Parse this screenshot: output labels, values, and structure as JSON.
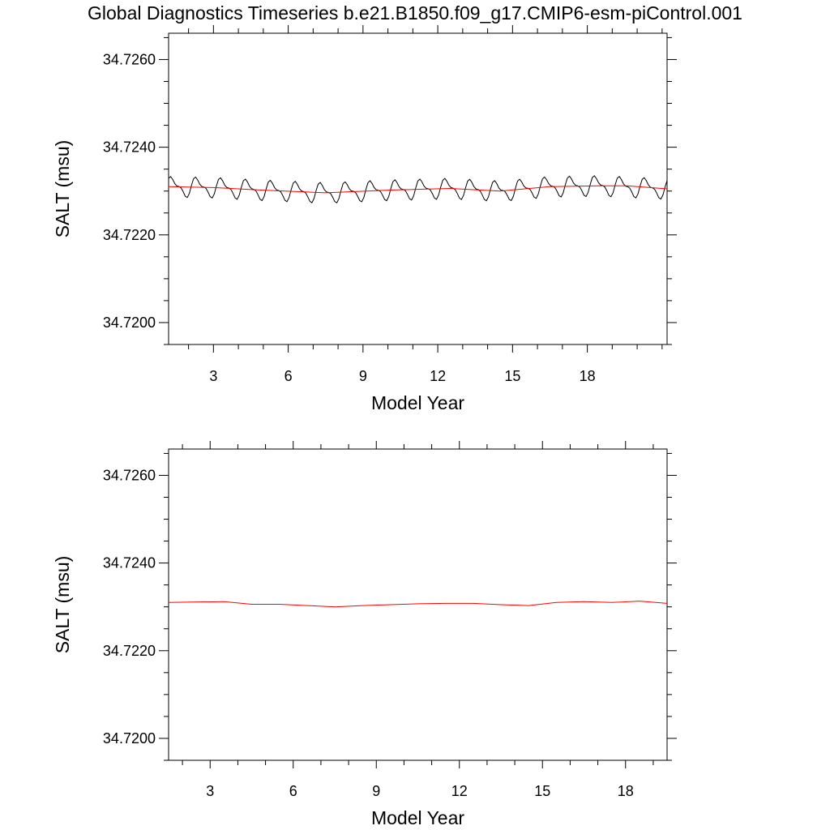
{
  "figure": {
    "title": "Global Diagnostics Timeseries b.e21.B1850.f09_g17.CMIP6-esm-piControl.001"
  },
  "chart_data": [
    {
      "type": "line",
      "title": "",
      "xlabel": "Model Year",
      "ylabel": "SALT (msu)",
      "xlim": [
        1.2,
        21.2
      ],
      "ylim": [
        34.7195,
        34.7266
      ],
      "x_ticks": [
        3,
        6,
        9,
        12,
        15,
        18
      ],
      "y_ticks": [
        34.72,
        34.722,
        34.724,
        34.726
      ],
      "y_tick_labels": [
        "34.7200",
        "34.7220",
        "34.7240",
        "34.7260"
      ],
      "grid": false,
      "series": [
        {
          "style": "monthly",
          "color": "#000000",
          "baseline": [
            [
              1.2,
              34.7231
            ],
            [
              3.0,
              34.72308
            ],
            [
              5.0,
              34.72302
            ],
            [
              7.5,
              34.72296
            ],
            [
              10.0,
              34.72302
            ],
            [
              12.5,
              34.72306
            ],
            [
              14.5,
              34.723
            ],
            [
              16.5,
              34.7231
            ],
            [
              18.5,
              34.72312
            ],
            [
              21.2,
              34.72305
            ]
          ],
          "seasonal_amplitude": 0.00025,
          "start_year": 1.2
        },
        {
          "style": "annual",
          "color": "#ff0000",
          "x": [
            1.2,
            3.0,
            5.0,
            7.5,
            10.0,
            12.5,
            14.5,
            16.5,
            18.5,
            19.6,
            21.2
          ],
          "values": [
            34.7231,
            34.72308,
            34.72302,
            34.72296,
            34.72302,
            34.72306,
            34.723,
            34.7231,
            34.72312,
            34.72312,
            34.72305
          ]
        }
      ]
    },
    {
      "type": "line",
      "title": "",
      "xlabel": "Model Year",
      "ylabel": "SALT (msu)",
      "xlim": [
        1.5,
        19.5
      ],
      "ylim": [
        34.7195,
        34.7266
      ],
      "x_ticks": [
        3,
        6,
        9,
        12,
        15,
        18
      ],
      "y_ticks": [
        34.72,
        34.722,
        34.724,
        34.726
      ],
      "y_tick_labels": [
        "34.7200",
        "34.7220",
        "34.7240",
        "34.7260"
      ],
      "grid": false,
      "series": [
        {
          "style": "annual",
          "color": "#ff0000",
          "x": [
            1.5,
            3.5,
            4.5,
            5.5,
            6.5,
            7.5,
            8.5,
            9.5,
            10.5,
            11.5,
            12.5,
            13.5,
            14.5,
            15.5,
            16.5,
            17.5,
            18.5,
            19.5
          ],
          "values": [
            34.7231,
            34.72312,
            34.72306,
            34.72306,
            34.72303,
            34.723,
            34.72303,
            34.72305,
            34.72307,
            34.72308,
            34.72308,
            34.72305,
            34.72303,
            34.7231,
            34.72312,
            34.7231,
            34.72313,
            34.72308
          ]
        }
      ]
    }
  ]
}
